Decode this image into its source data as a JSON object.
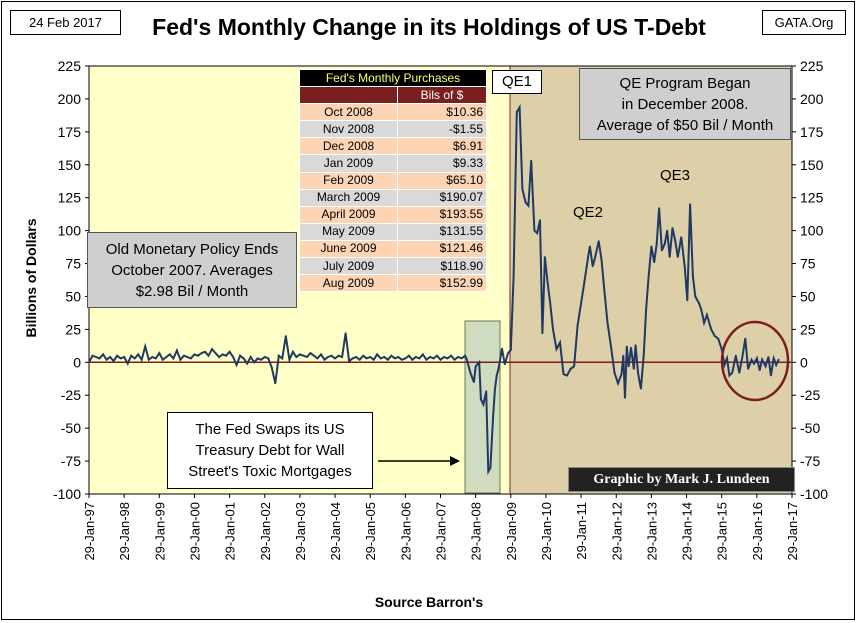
{
  "header": {
    "date": "24 Feb 2017",
    "title": "Fed's Monthly Change in its Holdings of US T-Debt",
    "source_tag": "GATA.Org"
  },
  "annotations": {
    "old_policy": [
      "Old Monetary Policy Ends",
      "October 2007.  Averages",
      "$2.98 Bil / Month"
    ],
    "qe_program": [
      "QE Program Began",
      "in December 2008.",
      "Average of $50 Bil / Month"
    ],
    "fed_swaps": [
      "The Fed Swaps its US",
      "Treasury Debt for Wall",
      "Street's Toxic Mortgages"
    ],
    "qe1": "QE1",
    "qe2": "QE2",
    "qe3": "QE3",
    "signature": "Graphic by Mark J. Lundeen"
  },
  "purchases_table": {
    "title": "Fed's Monthly Purchases",
    "unit_header": "Bils of $",
    "rows": [
      {
        "month": "Oct 2008",
        "value": "$10.36"
      },
      {
        "month": "Nov 2008",
        "value": "-$1.55"
      },
      {
        "month": "Dec 2008",
        "value": "$6.91"
      },
      {
        "month": "Jan 2009",
        "value": "$9.33"
      },
      {
        "month": "Feb 2009",
        "value": "$65.10"
      },
      {
        "month": "March 2009",
        "value": "$190.07"
      },
      {
        "month": "April 2009",
        "value": "$193.55"
      },
      {
        "month": "May 2009",
        "value": "$131.55"
      },
      {
        "month": "June 2009",
        "value": "$121.46"
      },
      {
        "month": "July 2009",
        "value": "$118.90"
      },
      {
        "month": "Aug 2009",
        "value": "$152.99"
      }
    ],
    "colors": {
      "title_bg": "#000000",
      "title_fg": "#ffff66",
      "header_bg": "#7a1f1f",
      "header_fg": "#ffffff",
      "row_a": "#fdd5b5",
      "row_b": "#d9d9d9"
    }
  },
  "colors": {
    "pre_qe_bg": "#ffffc8",
    "qe_bg": "#ddd0a8",
    "swap_box": "#d0dcc0",
    "line": "#1f3864",
    "zero_line": "#7a1f1f",
    "circle": "#7a1f1f"
  },
  "chart_data": {
    "type": "line",
    "title": "Fed's Monthly Change in its Holdings of US T-Debt",
    "xlabel": "Source Barron's",
    "ylabel": "Billions  of Dollars",
    "ylim": [
      -100,
      225
    ],
    "yticks": [
      -100,
      -75,
      -50,
      -25,
      0,
      25,
      50,
      75,
      100,
      125,
      150,
      175,
      200,
      225
    ],
    "xticks": [
      "29-Jan-97",
      "29-Jan-98",
      "29-Jan-99",
      "29-Jan-00",
      "29-Jan-01",
      "29-Jan-02",
      "29-Jan-03",
      "29-Jan-04",
      "29-Jan-05",
      "29-Jan-06",
      "29-Jan-07",
      "29-Jan-08",
      "29-Jan-09",
      "29-Jan-10",
      "29-Jan-11",
      "29-Jan-12",
      "29-Jan-13",
      "29-Jan-14",
      "29-Jan-15",
      "29-Jan-16",
      "29-Jan-17"
    ],
    "x_start_year": 1997,
    "x_end_year": 2017,
    "grid": false,
    "series": [
      {
        "points": [
          [
            1997.0,
            0
          ],
          [
            1997.1,
            5
          ],
          [
            1997.2,
            4
          ],
          [
            1997.3,
            3
          ],
          [
            1997.4,
            6
          ],
          [
            1997.5,
            2
          ],
          [
            1997.6,
            4
          ],
          [
            1997.7,
            1
          ],
          [
            1997.8,
            5
          ],
          [
            1997.9,
            3
          ],
          [
            1998.0,
            4
          ],
          [
            1998.1,
            -1
          ],
          [
            1998.2,
            5
          ],
          [
            1998.3,
            3
          ],
          [
            1998.4,
            6
          ],
          [
            1998.5,
            2
          ],
          [
            1998.6,
            12
          ],
          [
            1998.7,
            2
          ],
          [
            1998.8,
            4
          ],
          [
            1998.9,
            3
          ],
          [
            1999.0,
            7
          ],
          [
            1999.1,
            2
          ],
          [
            1999.2,
            4
          ],
          [
            1999.3,
            6
          ],
          [
            1999.4,
            3
          ],
          [
            1999.5,
            9
          ],
          [
            1999.6,
            2
          ],
          [
            1999.7,
            5
          ],
          [
            1999.8,
            4
          ],
          [
            1999.9,
            3
          ],
          [
            2000.0,
            6
          ],
          [
            2000.1,
            5
          ],
          [
            2000.2,
            7
          ],
          [
            2000.3,
            8
          ],
          [
            2000.4,
            5
          ],
          [
            2000.5,
            10
          ],
          [
            2000.6,
            7
          ],
          [
            2000.7,
            4
          ],
          [
            2000.8,
            6
          ],
          [
            2000.9,
            5
          ],
          [
            2001.0,
            8
          ],
          [
            2001.1,
            4
          ],
          [
            2001.2,
            -2
          ],
          [
            2001.3,
            5
          ],
          [
            2001.4,
            3
          ],
          [
            2001.5,
            -1
          ],
          [
            2001.6,
            4
          ],
          [
            2001.7,
            0
          ],
          [
            2001.8,
            3
          ],
          [
            2001.9,
            2
          ],
          [
            2002.0,
            4
          ],
          [
            2002.1,
            3
          ],
          [
            2002.2,
            -4
          ],
          [
            2002.3,
            -16
          ],
          [
            2002.4,
            5
          ],
          [
            2002.5,
            3
          ],
          [
            2002.6,
            20
          ],
          [
            2002.7,
            2
          ],
          [
            2002.8,
            8
          ],
          [
            2002.9,
            4
          ],
          [
            2003.0,
            6
          ],
          [
            2003.1,
            5
          ],
          [
            2003.2,
            4
          ],
          [
            2003.3,
            7
          ],
          [
            2003.4,
            5
          ],
          [
            2003.5,
            3
          ],
          [
            2003.6,
            6
          ],
          [
            2003.7,
            2
          ],
          [
            2003.8,
            4
          ],
          [
            2003.9,
            5
          ],
          [
            2004.0,
            3
          ],
          [
            2004.1,
            5
          ],
          [
            2004.2,
            4
          ],
          [
            2004.3,
            22
          ],
          [
            2004.4,
            1
          ],
          [
            2004.5,
            3
          ],
          [
            2004.6,
            4
          ],
          [
            2004.7,
            2
          ],
          [
            2004.8,
            5
          ],
          [
            2004.9,
            3
          ],
          [
            2005.0,
            4
          ],
          [
            2005.1,
            2
          ],
          [
            2005.2,
            6
          ],
          [
            2005.3,
            3
          ],
          [
            2005.4,
            4
          ],
          [
            2005.5,
            2
          ],
          [
            2005.6,
            5
          ],
          [
            2005.7,
            3
          ],
          [
            2005.8,
            4
          ],
          [
            2005.9,
            2
          ],
          [
            2006.0,
            3
          ],
          [
            2006.1,
            5
          ],
          [
            2006.2,
            2
          ],
          [
            2006.3,
            4
          ],
          [
            2006.4,
            3
          ],
          [
            2006.5,
            6
          ],
          [
            2006.6,
            2
          ],
          [
            2006.7,
            4
          ],
          [
            2006.8,
            3
          ],
          [
            2006.9,
            5
          ],
          [
            2007.0,
            2
          ],
          [
            2007.1,
            4
          ],
          [
            2007.2,
            3
          ],
          [
            2007.3,
            5
          ],
          [
            2007.4,
            2
          ],
          [
            2007.5,
            4
          ],
          [
            2007.6,
            3
          ],
          [
            2007.7,
            5
          ],
          [
            2007.75,
            2
          ],
          [
            2007.85,
            -8
          ],
          [
            2007.95,
            -15
          ],
          [
            2008.0,
            -3
          ],
          [
            2008.1,
            0
          ],
          [
            2008.15,
            -28
          ],
          [
            2008.22,
            -32
          ],
          [
            2008.3,
            -22
          ],
          [
            2008.36,
            -83
          ],
          [
            2008.42,
            -80
          ],
          [
            2008.5,
            -40
          ],
          [
            2008.55,
            -20
          ],
          [
            2008.6,
            -10
          ],
          [
            2008.65,
            -5
          ],
          [
            2008.75,
            10.36
          ],
          [
            2008.83,
            -1.55
          ],
          [
            2008.92,
            6.91
          ],
          [
            2009.0,
            9.33
          ],
          [
            2009.08,
            65.1
          ],
          [
            2009.17,
            190.07
          ],
          [
            2009.25,
            193.55
          ],
          [
            2009.33,
            131.55
          ],
          [
            2009.42,
            121.46
          ],
          [
            2009.5,
            118.9
          ],
          [
            2009.58,
            152.99
          ],
          [
            2009.67,
            100
          ],
          [
            2009.75,
            98
          ],
          [
            2009.83,
            108
          ],
          [
            2009.9,
            22
          ],
          [
            2009.97,
            80
          ],
          [
            2010.05,
            60
          ],
          [
            2010.12,
            45
          ],
          [
            2010.2,
            25
          ],
          [
            2010.3,
            10
          ],
          [
            2010.4,
            15
          ],
          [
            2010.5,
            -9
          ],
          [
            2010.6,
            -10
          ],
          [
            2010.7,
            -5
          ],
          [
            2010.8,
            -3
          ],
          [
            2010.9,
            28
          ],
          [
            2011.0,
            45
          ],
          [
            2011.1,
            62
          ],
          [
            2011.2,
            80
          ],
          [
            2011.25,
            88
          ],
          [
            2011.33,
            73
          ],
          [
            2011.4,
            80
          ],
          [
            2011.5,
            92
          ],
          [
            2011.58,
            78
          ],
          [
            2011.66,
            55
          ],
          [
            2011.75,
            30
          ],
          [
            2011.85,
            12
          ],
          [
            2011.95,
            -8
          ],
          [
            2012.05,
            -16
          ],
          [
            2012.15,
            -9
          ],
          [
            2012.2,
            5
          ],
          [
            2012.25,
            -27
          ],
          [
            2012.3,
            12
          ],
          [
            2012.35,
            -3
          ],
          [
            2012.42,
            11
          ],
          [
            2012.5,
            -5
          ],
          [
            2012.55,
            13
          ],
          [
            2012.62,
            -8
          ],
          [
            2012.7,
            -20
          ],
          [
            2012.78,
            5
          ],
          [
            2012.85,
            40
          ],
          [
            2012.92,
            65
          ],
          [
            2013.0,
            88
          ],
          [
            2013.08,
            76
          ],
          [
            2013.15,
            90
          ],
          [
            2013.22,
            117
          ],
          [
            2013.3,
            85
          ],
          [
            2013.38,
            90
          ],
          [
            2013.45,
            100
          ],
          [
            2013.52,
            80
          ],
          [
            2013.6,
            102
          ],
          [
            2013.68,
            92
          ],
          [
            2013.75,
            80
          ],
          [
            2013.85,
            95
          ],
          [
            2013.95,
            72
          ],
          [
            2014.02,
            47
          ],
          [
            2014.1,
            120
          ],
          [
            2014.18,
            65
          ],
          [
            2014.25,
            50
          ],
          [
            2014.35,
            45
          ],
          [
            2014.42,
            40
          ],
          [
            2014.5,
            30
          ],
          [
            2014.58,
            36
          ],
          [
            2014.7,
            25
          ],
          [
            2014.8,
            20
          ],
          [
            2014.9,
            18
          ],
          [
            2015.0,
            10
          ],
          [
            2015.08,
            -2
          ],
          [
            2015.15,
            3
          ],
          [
            2015.22,
            -10
          ],
          [
            2015.3,
            -8
          ],
          [
            2015.4,
            5
          ],
          [
            2015.5,
            -8
          ],
          [
            2015.58,
            3
          ],
          [
            2015.67,
            18
          ],
          [
            2015.75,
            -5
          ],
          [
            2015.85,
            2
          ],
          [
            2015.92,
            -1
          ],
          [
            2016.0,
            3
          ],
          [
            2016.08,
            -6
          ],
          [
            2016.15,
            2
          ],
          [
            2016.25,
            -3
          ],
          [
            2016.33,
            4
          ],
          [
            2016.4,
            -10
          ],
          [
            2016.48,
            3
          ],
          [
            2016.55,
            -2
          ],
          [
            2016.62,
            2
          ]
        ]
      }
    ]
  }
}
